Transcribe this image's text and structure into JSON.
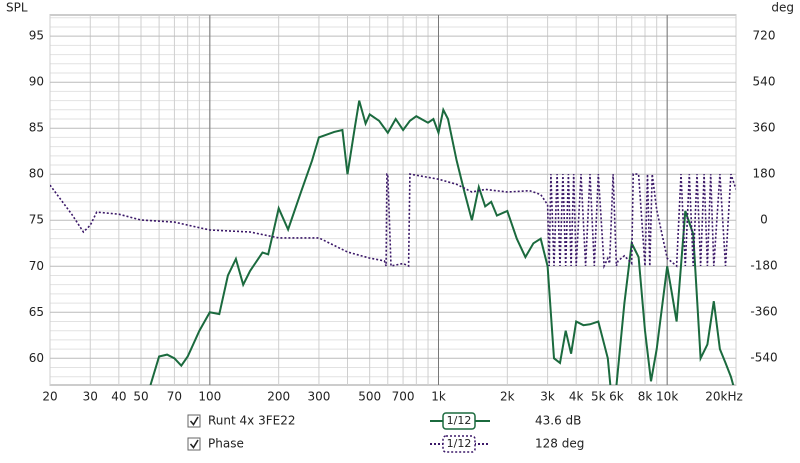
{
  "chart_data": {
    "type": "line",
    "y_title": "SPL",
    "y2_title": "deg",
    "xscale": "log",
    "xlim": [
      20,
      20000
    ],
    "xticks": [
      20,
      30,
      40,
      50,
      70,
      100,
      200,
      300,
      500,
      700,
      {
        "value": 1000,
        "label": "1k"
      },
      {
        "value": 2000,
        "label": "2k"
      },
      {
        "value": 3000,
        "label": "3k"
      },
      {
        "value": 4000,
        "label": "4k"
      },
      {
        "value": 5000,
        "label": "5k"
      },
      {
        "value": 6000,
        "label": "6k"
      },
      {
        "value": 8000,
        "label": "8k"
      },
      {
        "value": 10000,
        "label": "10k"
      },
      {
        "value": 20000,
        "label": "20kHz"
      }
    ],
    "x_minor_grid": [
      20,
      30,
      40,
      50,
      60,
      70,
      80,
      90,
      100,
      200,
      300,
      400,
      500,
      600,
      700,
      800,
      900,
      1000,
      2000,
      3000,
      4000,
      5000,
      6000,
      7000,
      8000,
      9000,
      10000,
      20000
    ],
    "x_major_grid": [
      100,
      1000,
      10000
    ],
    "ylim": [
      57.1,
      97.3
    ],
    "yticks": [
      60,
      65,
      70,
      75,
      80,
      85,
      90,
      95
    ],
    "y_minor_grid": [
      58,
      59,
      61,
      62,
      63,
      64,
      66,
      67,
      68,
      69,
      71,
      72,
      73,
      74,
      76,
      77,
      78,
      79,
      81,
      82,
      83,
      84,
      86,
      87,
      88,
      89,
      91,
      92,
      93,
      94,
      96,
      97
    ],
    "y2lim": [
      -646,
      803
    ],
    "y2ticks": [
      720,
      540,
      360,
      180,
      0,
      -180,
      -360,
      -540
    ],
    "grid": true,
    "series": [
      {
        "name": "Runt 4x 3FE22",
        "color": "#1b6a3e",
        "dash": "solid",
        "axis": "y",
        "smoothing": "1/12",
        "readout": "43.6 dB",
        "x": [
          55,
          60,
          65,
          70,
          75,
          80,
          90,
          100,
          110,
          120,
          130,
          140,
          150,
          170,
          180,
          200,
          220,
          250,
          280,
          300,
          350,
          380,
          400,
          430,
          450,
          480,
          500,
          550,
          600,
          650,
          700,
          750,
          800,
          900,
          950,
          1000,
          1050,
          1100,
          1200,
          1300,
          1400,
          1500,
          1600,
          1700,
          1800,
          2000,
          2200,
          2400,
          2600,
          2800,
          3000,
          3200,
          3400,
          3600,
          3800,
          4000,
          4300,
          4600,
          5000,
          5500,
          5700,
          6000,
          6500,
          7000,
          7500,
          8000,
          8500,
          9000,
          10000,
          10500,
          11000,
          12000,
          13000,
          14000,
          15000,
          16000,
          17000,
          18000,
          19000,
          20000
        ],
        "values": [
          57.1,
          60.2,
          60.4,
          60.0,
          59.2,
          60.2,
          63,
          65,
          64.8,
          69,
          70.8,
          68,
          69.5,
          71.5,
          71.3,
          76.3,
          74,
          78,
          81.5,
          84,
          84.6,
          84.8,
          80,
          85,
          88,
          85.5,
          86.5,
          85.8,
          84.5,
          86,
          84.8,
          85.8,
          86.3,
          85.6,
          86,
          84.5,
          87,
          86,
          81.5,
          78,
          75,
          78.6,
          76.5,
          77,
          75.5,
          76,
          73,
          71,
          72.5,
          73,
          70,
          60,
          59.5,
          63,
          60.5,
          64,
          63.6,
          63.7,
          64,
          60,
          56,
          57,
          66,
          72.5,
          71,
          63,
          57.5,
          61,
          70,
          67,
          64,
          76,
          73.5,
          60,
          61.5,
          66.2,
          61,
          59.5,
          58,
          56
        ]
      },
      {
        "name": "Phase",
        "color": "#3b1868",
        "dash": "dotted",
        "axis": "y2",
        "smoothing": "1/12",
        "readout": "128 deg",
        "x": [
          20,
          25,
          28,
          30,
          32,
          40,
          50,
          70,
          100,
          150,
          200,
          300,
          400,
          500,
          580,
          590,
          595,
          600,
          620,
          700,
          740,
          750,
          1000,
          1200,
          1400,
          1600,
          2000,
          2500,
          2800,
          3000,
          3050,
          3100,
          3200,
          3300,
          3400,
          3500,
          3600,
          3700,
          3800,
          3900,
          4000,
          4200,
          4400,
          4600,
          4800,
          5000,
          5300,
          5500,
          5600,
          5800,
          6000,
          6100,
          6500,
          7000,
          7100,
          7500,
          8000,
          8200,
          8400,
          8600,
          9000,
          10000,
          11000,
          11500,
          12000,
          12500,
          13000,
          13500,
          14000,
          14500,
          15000,
          15500,
          16000,
          17000,
          18000,
          19000,
          20000
        ],
        "values": [
          137,
          20,
          -47,
          -20,
          31,
          23,
          0,
          -8,
          -39,
          -47,
          -70,
          -70,
          -125,
          -149,
          -160,
          -180,
          180,
          180,
          -180,
          -170,
          -180,
          180,
          160,
          140,
          110,
          120,
          110,
          115,
          100,
          60,
          -180,
          180,
          -180,
          180,
          -180,
          180,
          -180,
          180,
          -180,
          180,
          -180,
          180,
          -180,
          180,
          -180,
          180,
          -180,
          -150,
          -170,
          180,
          -180,
          -160,
          -140,
          -170,
          180,
          180,
          -180,
          180,
          -180,
          180,
          40,
          -150,
          -180,
          180,
          -180,
          180,
          -180,
          180,
          -180,
          180,
          -180,
          180,
          -180,
          180,
          -180,
          180,
          120
        ]
      }
    ]
  }
}
